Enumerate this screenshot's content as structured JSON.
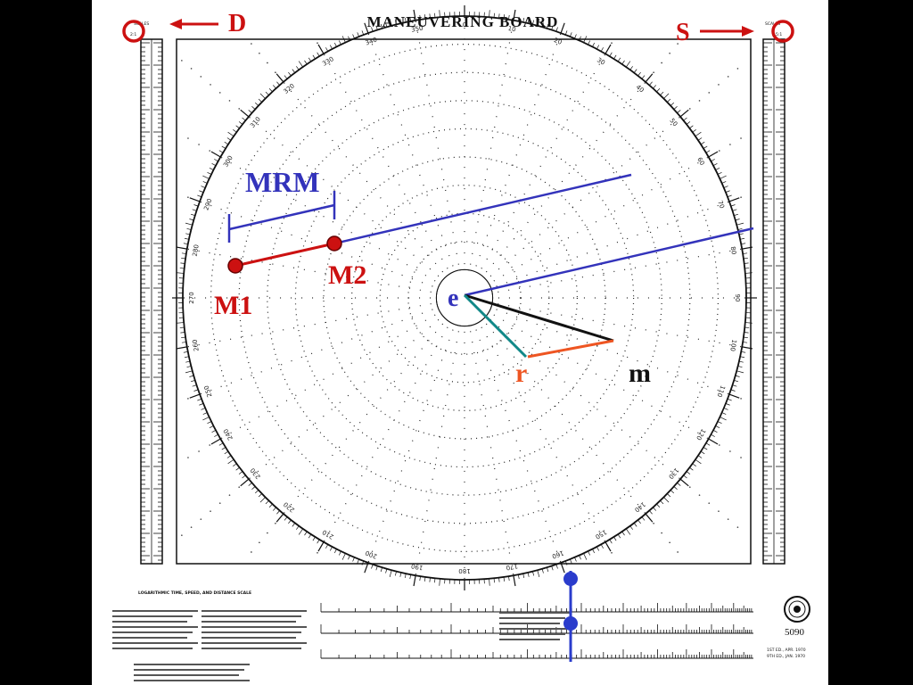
{
  "board": {
    "title": "MANEUVERING BOARD",
    "form_number": "5090",
    "left_scale_label": "SCALES",
    "left_scale_ratio": "2:1",
    "right_scale_label": "SCALES",
    "right_scale_ratio": "5:1",
    "nomogram_title": "LOGARITHMIC TIME, SPEED, AND DISTANCE SCALE",
    "edition_1": "1ST ED., APR. 1970",
    "edition_2": "9TH ED., JAN. 1970"
  },
  "bearings": {
    "b000": "0",
    "b010": "10",
    "b020": "20",
    "b030": "30",
    "b040": "40",
    "b050": "50",
    "b060": "60",
    "b070": "70",
    "b080": "80",
    "b090": "90",
    "b100": "100",
    "b110": "110",
    "b120": "120",
    "b130": "130",
    "b140": "140",
    "b150": "150",
    "b160": "160",
    "b170": "170",
    "b180": "180",
    "b190": "190",
    "b200": "200",
    "b210": "210",
    "b220": "220",
    "b230": "230",
    "b240": "240",
    "b250": "250",
    "b260": "260",
    "b270": "270",
    "b280": "280",
    "b290": "290",
    "b300": "300",
    "b310": "310",
    "b320": "320",
    "b330": "330",
    "b340": "340",
    "b350": "350"
  },
  "annotations": {
    "distance_arrow_label": "D",
    "speed_arrow_label": "S",
    "mrm_label": "MRM",
    "m1_label": "M1",
    "m2_label": "M2",
    "e_label": "e",
    "r_label": "r",
    "m_label": "m"
  },
  "colors": {
    "annotation_red": "#cc1111",
    "annotation_blue": "#3333bb",
    "e_to_r_teal": "#118888",
    "r_to_m_orange": "#ee5522",
    "nomogram_dot_blue": "#2a3ccc"
  }
}
